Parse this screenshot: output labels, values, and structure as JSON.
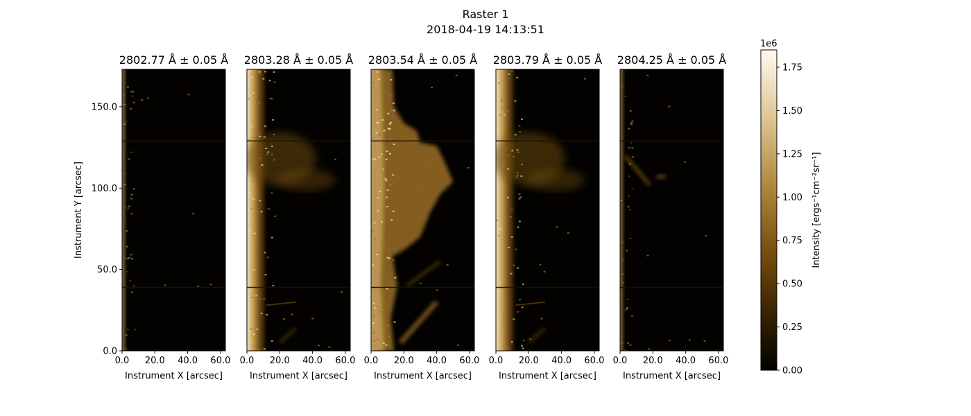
{
  "figure": {
    "title_line1": "Raster 1",
    "title_line2": "2018-04-19 14:13:51"
  },
  "chart_data": {
    "type": "heatmap",
    "colormap": "sdoaia1600-like (black → brown → cream)",
    "panels": [
      {
        "title": "2802.77 Å ± 0.05 Å",
        "wavelength": 2802.77,
        "brightness": "low",
        "features": "faint limb strip, isolated bright dots"
      },
      {
        "title": "2803.28 Å ± 0.05 Å",
        "wavelength": 2803.28,
        "brightness": "medium",
        "features": "bright limb band, diffuse loops near y≈100-130"
      },
      {
        "title": "2803.54 Å ± 0.05 Å",
        "wavelength": 2803.54,
        "brightness": "high",
        "features": "broad bright plume from limb to x≈30 between y≈55-135"
      },
      {
        "title": "2803.79 Å ± 0.05 Å",
        "wavelength": 2803.79,
        "brightness": "medium",
        "features": "bright limb band, structure near y≈90-130"
      },
      {
        "title": "2804.25 Å ± 0.05 Å",
        "wavelength": 2804.25,
        "brightness": "low",
        "features": "faint limb strip, diagonal feature near y≈105-120"
      }
    ],
    "xlabel": "Instrument X [arcsec]",
    "ylabel": "Instrument Y [arcsec]",
    "xlim": [
      0,
      63
    ],
    "ylim": [
      0,
      173
    ],
    "xticks": [
      0,
      20,
      40,
      60
    ],
    "xtick_labels": [
      "0.0",
      "20.0",
      "40.0",
      "60.0"
    ],
    "yticks": [
      0,
      50,
      100,
      150
    ],
    "ytick_labels": [
      "0.0",
      "50.0",
      "100.0",
      "150.0"
    ],
    "colorbar": {
      "label": "Intensity [ergs⁻¹cm⁻²sr⁻¹]",
      "offset_text": "1e6",
      "range": [
        0,
        1.85
      ],
      "ticks": [
        0,
        0.25,
        0.5,
        0.75,
        1.0,
        1.25,
        1.5,
        1.75
      ],
      "tick_labels": [
        "0.00",
        "0.25",
        "0.50",
        "0.75",
        "1.00",
        "1.25",
        "1.50",
        "1.75"
      ]
    }
  }
}
